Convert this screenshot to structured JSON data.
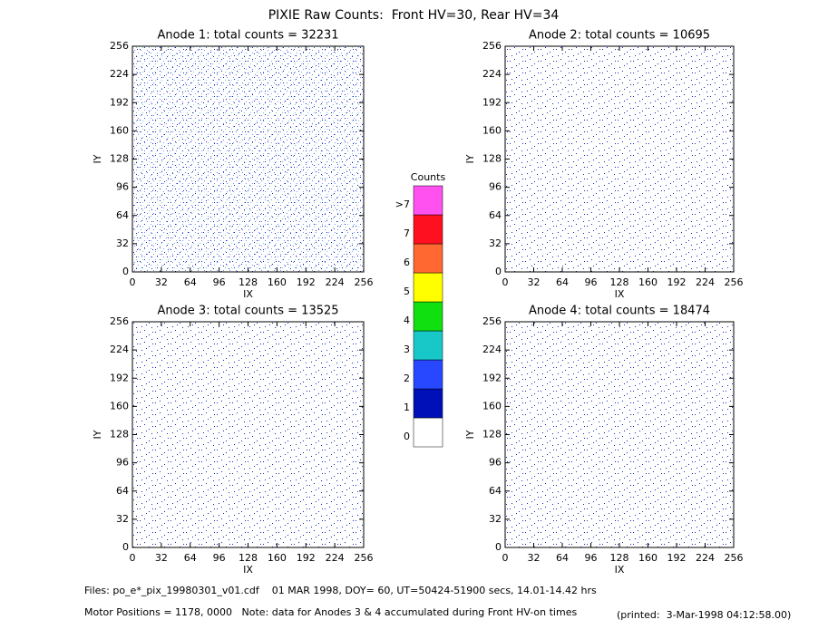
{
  "header": {
    "title": "PIXIE Raw Counts:  Front HV=30, Rear HV=34"
  },
  "chart_data": [
    {
      "type": "heatmap",
      "title": "Anode 1: total counts = 32231",
      "xlabel": "IX",
      "ylabel": "IY",
      "xlim": [
        0,
        256
      ],
      "ylim": [
        0,
        256
      ],
      "xticks": [
        0,
        32,
        64,
        96,
        128,
        160,
        192,
        224,
        256
      ],
      "yticks": [
        0,
        32,
        64,
        96,
        128,
        160,
        192,
        224,
        256
      ]
    },
    {
      "type": "heatmap",
      "title": "Anode 2: total counts = 10695",
      "xlabel": "IX",
      "ylabel": "IY",
      "xlim": [
        0,
        256
      ],
      "ylim": [
        0,
        256
      ],
      "xticks": [
        0,
        32,
        64,
        96,
        128,
        160,
        192,
        224,
        256
      ],
      "yticks": [
        0,
        32,
        64,
        96,
        128,
        160,
        192,
        224,
        256
      ]
    },
    {
      "type": "heatmap",
      "title": "Anode 3: total counts = 13525",
      "xlabel": "IX",
      "ylabel": "IY",
      "xlim": [
        0,
        256
      ],
      "ylim": [
        0,
        256
      ],
      "xticks": [
        0,
        32,
        64,
        96,
        128,
        160,
        192,
        224,
        256
      ],
      "yticks": [
        0,
        32,
        64,
        96,
        128,
        160,
        192,
        224,
        256
      ]
    },
    {
      "type": "heatmap",
      "title": "Anode 4: total counts = 18474",
      "xlabel": "IX",
      "ylabel": "IY",
      "xlim": [
        0,
        256
      ],
      "ylim": [
        0,
        256
      ],
      "xticks": [
        0,
        32,
        64,
        96,
        128,
        160,
        192,
        224,
        256
      ],
      "yticks": [
        0,
        32,
        64,
        96,
        128,
        160,
        192,
        224,
        256
      ]
    },
    {
      "type": "colorbar",
      "title": "Counts",
      "categories": [
        "0",
        "1",
        "2",
        "3",
        "4",
        "5",
        "6",
        "7",
        ">7"
      ],
      "colors": [
        "#ffffff",
        "#0010b8",
        "#2848ff",
        "#18c8c8",
        "#10e010",
        "#ffff00",
        "#ff6830",
        "#ff1020",
        "#ff50f0"
      ]
    }
  ],
  "footer": {
    "files": "Files: po_e*_pix_19980301_v01.cdf    01 MAR 1998, DOY= 60, UT=50424-51900 secs, 14.01-14.42 hrs",
    "motor": "Motor Positions = 1178, 0000   Note: data for Anodes 3 & 4 accumulated during Front HV-on times",
    "printed": "(printed:  3-Mar-1998 04:12:58.00)"
  }
}
